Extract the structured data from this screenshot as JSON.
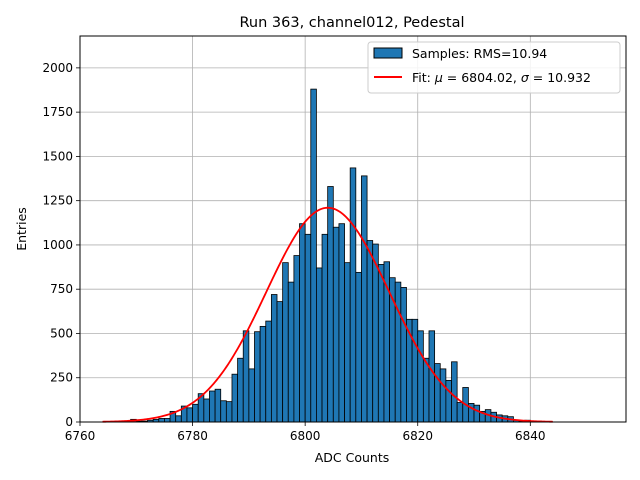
{
  "chart_data": {
    "type": "bar",
    "title": "Run 363, channel012, Pedestal",
    "xlabel": "ADC Counts",
    "ylabel": "Entries",
    "xlim": [
      6760,
      6857
    ],
    "ylim": [
      0,
      2180
    ],
    "xticks": [
      6760,
      6780,
      6800,
      6820,
      6840
    ],
    "yticks": [
      0,
      250,
      500,
      750,
      1000,
      1250,
      1500,
      1750,
      2000
    ],
    "grid": true,
    "legend": {
      "placement": "top-right"
    },
    "histogram": {
      "name": "Samples: RMS=10.94",
      "color": "#1f77b4",
      "edge_color": "#000000",
      "bin_width": 1,
      "start": 6764,
      "counts": [
        0,
        0,
        0,
        0,
        0,
        15,
        5,
        5,
        10,
        15,
        20,
        20,
        60,
        35,
        90,
        80,
        100,
        160,
        130,
        175,
        185,
        120,
        115,
        270,
        360,
        515,
        300,
        510,
        540,
        570,
        720,
        680,
        900,
        790,
        940,
        1120,
        1060,
        1880,
        870,
        1060,
        1330,
        1100,
        1120,
        900,
        1435,
        845,
        1390,
        1025,
        1005,
        890,
        905,
        815,
        790,
        760,
        580,
        580,
        515,
        360,
        515,
        330,
        300,
        235,
        340,
        110,
        195,
        105,
        95,
        60,
        70,
        55,
        40,
        35,
        30,
        10,
        5,
        10,
        5,
        5,
        0,
        0,
        0
      ]
    },
    "fit": {
      "name": "Fit: $\\mu$ = 6804.02, $\\sigma$ = 10.932",
      "legend_prefix": "Fit: ",
      "mu_label": "μ",
      "mu_text": " = 6804.02, ",
      "sigma_label": "σ",
      "sigma_text": " = 10.932",
      "color": "#ff0000",
      "mu": 6804.02,
      "sigma": 10.932,
      "amplitude": 1210,
      "x_range": [
        6764,
        6844
      ]
    }
  }
}
